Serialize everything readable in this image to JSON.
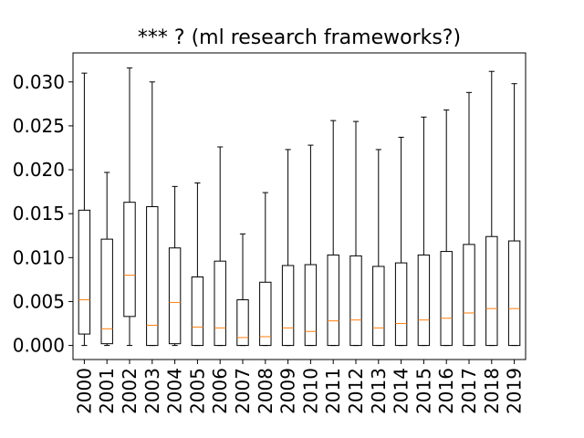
{
  "chart_data": {
    "type": "boxplot",
    "title": "*** ? (ml research frameworks?)",
    "xlabel": "",
    "ylabel": "",
    "ylim": [
      -0.0016,
      0.0333
    ],
    "yticks": [
      0.0,
      0.005,
      0.01,
      0.015,
      0.02,
      0.025,
      0.03
    ],
    "ytick_labels": [
      "0.000",
      "0.005",
      "0.010",
      "0.015",
      "0.020",
      "0.025",
      "0.030"
    ],
    "grid": false,
    "legend": "none",
    "colors": {
      "box": "#000000",
      "median": "#ff7f0e",
      "whisker": "#000000"
    },
    "categories": [
      "2000",
      "2001",
      "2002",
      "2003",
      "2004",
      "2005",
      "2006",
      "2007",
      "2008",
      "2009",
      "2010",
      "2011",
      "2012",
      "2013",
      "2014",
      "2015",
      "2016",
      "2017",
      "2018",
      "2019"
    ],
    "boxes": [
      {
        "q1": 0.0013,
        "median": 0.0052,
        "q3": 0.0154,
        "whislo": 0.0,
        "whishi": 0.031
      },
      {
        "q1": 0.0002,
        "median": 0.0019,
        "q3": 0.0121,
        "whislo": 0.0,
        "whishi": 0.0197
      },
      {
        "q1": 0.0033,
        "median": 0.008,
        "q3": 0.0163,
        "whislo": 0.0,
        "whishi": 0.0316
      },
      {
        "q1": 0.0,
        "median": 0.0023,
        "q3": 0.0158,
        "whislo": 0.0,
        "whishi": 0.03
      },
      {
        "q1": 0.0002,
        "median": 0.0049,
        "q3": 0.0111,
        "whislo": 0.0,
        "whishi": 0.0181
      },
      {
        "q1": 0.0,
        "median": 0.0021,
        "q3": 0.0078,
        "whislo": 0.0,
        "whishi": 0.0185
      },
      {
        "q1": 0.0,
        "median": 0.002,
        "q3": 0.0096,
        "whislo": 0.0,
        "whishi": 0.0226
      },
      {
        "q1": 0.0,
        "median": 0.0009,
        "q3": 0.0052,
        "whislo": 0.0,
        "whishi": 0.0127
      },
      {
        "q1": 0.0,
        "median": 0.001,
        "q3": 0.0072,
        "whislo": 0.0,
        "whishi": 0.0174
      },
      {
        "q1": 0.0,
        "median": 0.002,
        "q3": 0.0091,
        "whislo": 0.0,
        "whishi": 0.0223
      },
      {
        "q1": 0.0,
        "median": 0.0016,
        "q3": 0.0092,
        "whislo": 0.0,
        "whishi": 0.0228
      },
      {
        "q1": 0.0,
        "median": 0.0028,
        "q3": 0.0103,
        "whislo": 0.0,
        "whishi": 0.0256
      },
      {
        "q1": 0.0,
        "median": 0.0029,
        "q3": 0.0102,
        "whislo": 0.0,
        "whishi": 0.0255
      },
      {
        "q1": 0.0,
        "median": 0.002,
        "q3": 0.009,
        "whislo": 0.0,
        "whishi": 0.0223
      },
      {
        "q1": 0.0,
        "median": 0.0025,
        "q3": 0.0094,
        "whislo": 0.0,
        "whishi": 0.0237
      },
      {
        "q1": 0.0,
        "median": 0.0029,
        "q3": 0.0103,
        "whislo": 0.0,
        "whishi": 0.026
      },
      {
        "q1": 0.0,
        "median": 0.0031,
        "q3": 0.0107,
        "whislo": 0.0,
        "whishi": 0.0268
      },
      {
        "q1": 0.0,
        "median": 0.0037,
        "q3": 0.0115,
        "whislo": 0.0,
        "whishi": 0.0288
      },
      {
        "q1": 0.0,
        "median": 0.0042,
        "q3": 0.0124,
        "whislo": 0.0,
        "whishi": 0.0312
      },
      {
        "q1": 0.0,
        "median": 0.0042,
        "q3": 0.0119,
        "whislo": 0.0,
        "whishi": 0.0298
      }
    ]
  }
}
